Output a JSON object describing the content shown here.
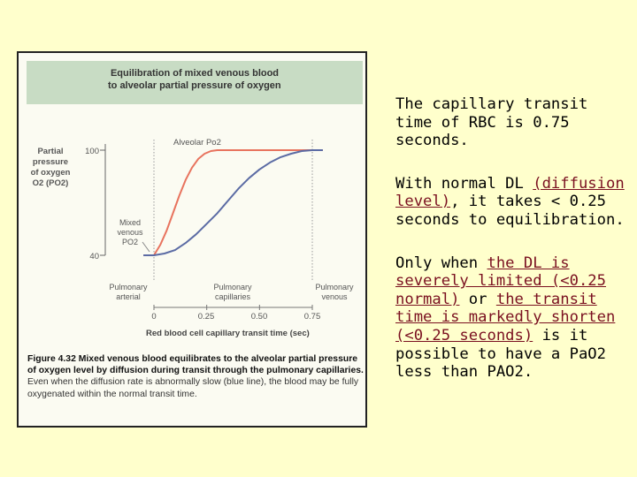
{
  "figure": {
    "caption_bold": "Figure 4.32  Mixed venous blood equilibrates to the alveolar partial pressure of oxygen level by diffusion during transit through the pulmonary capillaries.",
    "caption_rest": " Even when the diffusion rate is abnormally slow (blue line), the blood may be fully oxygenated within the normal transit time."
  },
  "chart_data": {
    "type": "line",
    "title": [
      "Equilibration of mixed venous blood",
      "to alveolar partial pressure of oxygen"
    ],
    "ylabel": [
      "Partial",
      "pressure",
      "of oxygen",
      "O2 (PO2)"
    ],
    "xlabel": "Red blood cell capillary transit time (sec)",
    "xlim": [
      0,
      0.75
    ],
    "ylim": [
      40,
      100
    ],
    "x_ticks": [
      "0",
      "0.25",
      "0.50",
      "0.75"
    ],
    "y_ticks": [
      "100",
      "40"
    ],
    "annotations": {
      "alveolar": "Alveolar Po2",
      "mixed_venous": [
        "Mixed",
        "venous",
        "PO2"
      ],
      "arterial": [
        "Pulmonary",
        "arterial"
      ],
      "capillaries": [
        "Pulmonary",
        "capillaries"
      ],
      "venous": [
        "Pulmonary",
        "venous"
      ]
    },
    "colors": {
      "normal": "#e8735e",
      "slow": "#5b6ba4",
      "header_bg": "#c8dcc4"
    },
    "series": [
      {
        "x": [
          -0.05,
          0,
          0.03,
          0.06,
          0.09,
          0.12,
          0.15,
          0.18,
          0.21,
          0.24,
          0.27,
          0.3,
          0.4,
          0.5,
          0.6,
          0.75,
          0.8
        ],
        "values": [
          40,
          40,
          46,
          54,
          64,
          74,
          83,
          90,
          95,
          98,
          99.5,
          100,
          100,
          100,
          100,
          100,
          100
        ]
      },
      {
        "x": [
          -0.05,
          0,
          0.05,
          0.1,
          0.15,
          0.2,
          0.25,
          0.3,
          0.35,
          0.4,
          0.45,
          0.5,
          0.55,
          0.6,
          0.65,
          0.7,
          0.75,
          0.8
        ],
        "values": [
          40,
          40,
          41,
          43,
          47,
          52,
          58,
          64,
          71,
          78,
          84,
          89,
          93,
          96,
          98,
          99.5,
          100,
          100
        ]
      }
    ]
  },
  "right_text": {
    "p1": "The capillary transit time of RBC is 0.75 seconds.",
    "p2_a": "With normal DL ",
    "p2_link": "(diffusion level)",
    "p2_b": ", it takes < 0.25 seconds to equilibration.",
    "p3_a": "Only when ",
    "p3_link1": "the DL is severely limited (<0.25 normal)",
    "p3_b": " or ",
    "p3_link2": "the transit time is markedly shorten (<0.25 seconds)",
    "p3_c": " is it possible to have a PaO2 less than PAO2."
  }
}
